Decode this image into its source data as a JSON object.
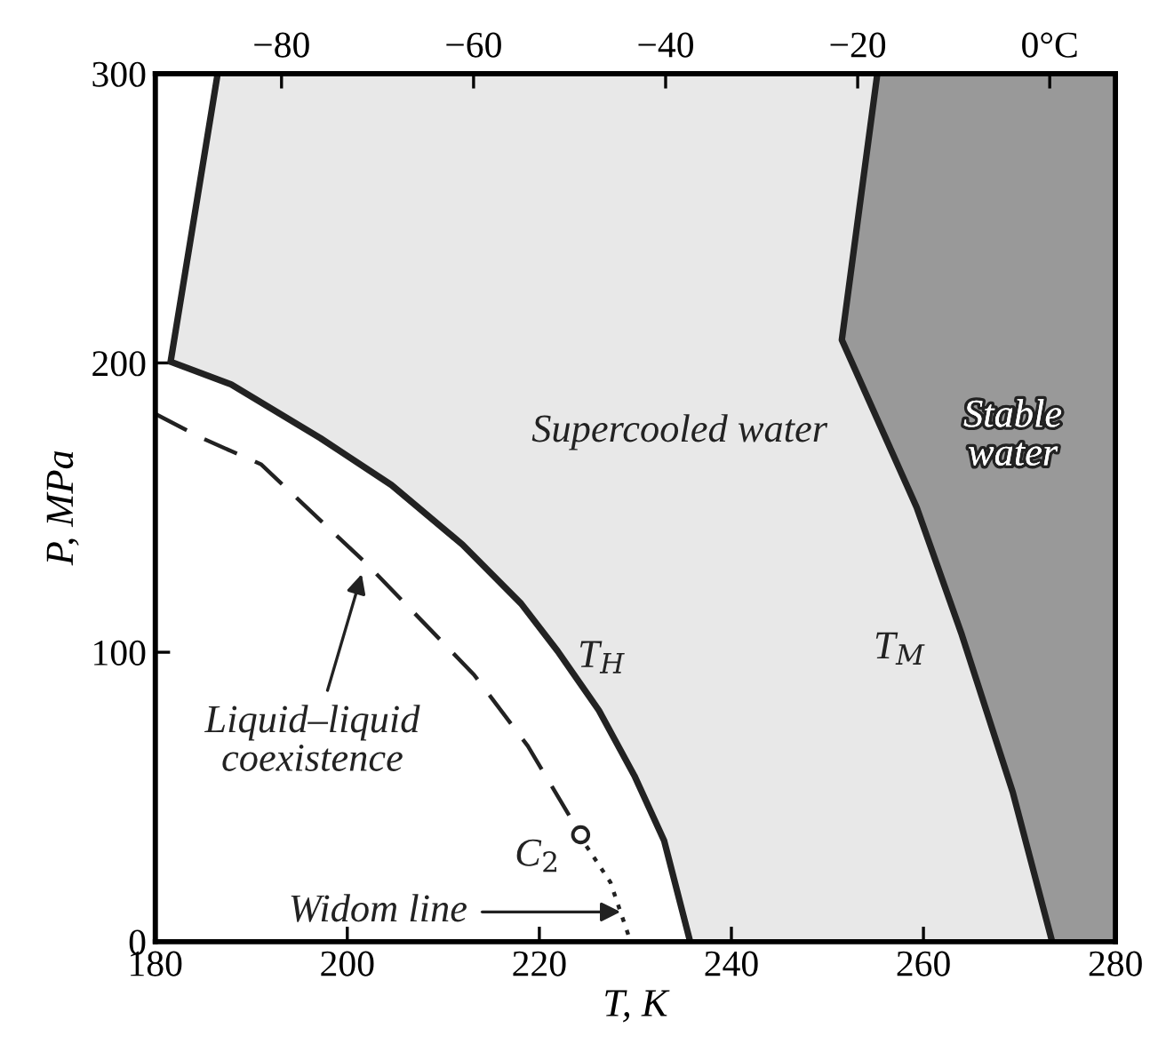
{
  "chart_data": {
    "type": "line",
    "xlabel": "T, K",
    "ylabel": "P, MPa",
    "xlim": [
      180,
      280
    ],
    "ylim": [
      0,
      300
    ],
    "xticks": [
      180,
      200,
      220,
      240,
      260,
      280
    ],
    "yticks": [
      0,
      100,
      200,
      300
    ],
    "x2lim": [
      -93.15,
      6.85
    ],
    "x2ticks": [
      {
        "value": -80,
        "label": "−80"
      },
      {
        "value": -60,
        "label": "−60"
      },
      {
        "value": -40,
        "label": "−40"
      },
      {
        "value": -20,
        "label": "−20"
      },
      {
        "value": 0,
        "label": "0°C"
      }
    ],
    "grid": false,
    "series": [
      {
        "color": "#222222",
        "line_style": "solid",
        "x": [
          235.7,
          233,
          229.9,
          226.2,
          221.9,
          218.1,
          212,
          204.6,
          197.2,
          187.9,
          181.6,
          186.5
        ],
        "values": [
          0,
          34.8,
          57.3,
          79.9,
          100.4,
          116.8,
          137.2,
          157.8,
          174,
          192.6,
          200.4,
          300
        ]
      },
      {
        "color": "#222222",
        "line_style": "solid",
        "x": [
          273.4,
          269.3,
          264,
          259.3,
          251.5,
          255.2
        ],
        "values": [
          0,
          51.6,
          106,
          150,
          208,
          300
        ]
      },
      {
        "color": "#222222",
        "line_style": "dashed",
        "x": [
          180,
          184.8,
          191,
          202.1,
          213.2,
          218.8,
          223.1
        ],
        "values": [
          182.4,
          174.1,
          165,
          130.3,
          92.2,
          67.6,
          43.6
        ]
      },
      {
        "color": "#222222",
        "line_style": "dotted",
        "x": [
          224.9,
          227.4,
          229.5
        ],
        "values": [
          33,
          20.5,
          0
        ]
      },
      {
        "type": "scatter",
        "color": "#222222",
        "marker": "circle",
        "x": [
          224.3
        ],
        "values": [
          36.9
        ]
      }
    ],
    "annotations": [
      "Supercooled water",
      "Stable\nwater",
      "T$_{H}$",
      "T$_{M}$",
      "C$_{2}$",
      {
        "text": "Liquid–liquid\ncoexistence",
        "x": 201.5,
        "y": 127
      },
      "Widom line"
    ]
  }
}
